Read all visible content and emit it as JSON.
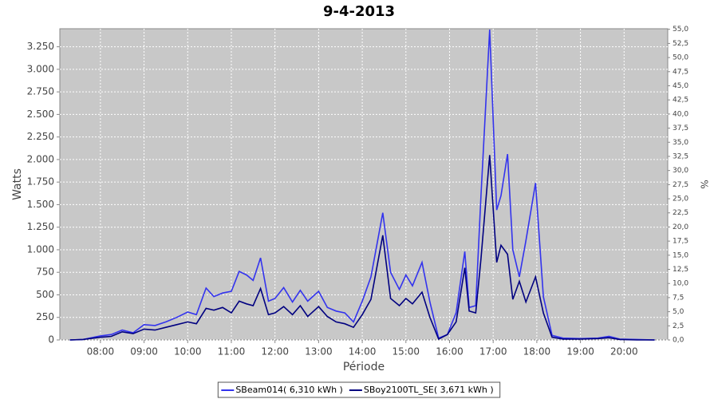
{
  "chart_data": {
    "type": "line",
    "title": "9-4-2013",
    "x_label": "Période",
    "y_label": "Watts",
    "y2_label": "%",
    "x": [
      7.3,
      7.6,
      8.0,
      8.25,
      8.5,
      8.75,
      9.0,
      9.25,
      9.5,
      9.75,
      10.0,
      10.2,
      10.42,
      10.6,
      10.8,
      11.0,
      11.18,
      11.35,
      11.5,
      11.67,
      11.85,
      12.0,
      12.2,
      12.4,
      12.58,
      12.75,
      13.0,
      13.2,
      13.4,
      13.6,
      13.8,
      14.0,
      14.2,
      14.47,
      14.65,
      14.85,
      15.0,
      15.15,
      15.37,
      15.55,
      15.75,
      15.95,
      16.15,
      16.35,
      16.45,
      16.6,
      16.72,
      16.92,
      17.08,
      17.18,
      17.33,
      17.45,
      17.6,
      17.75,
      17.97,
      18.15,
      18.35,
      18.6,
      19.0,
      19.4,
      19.65,
      19.9,
      20.3,
      20.7
    ],
    "series": [
      {
        "name": "SBeam014( 6,310 kWh )",
        "color": "#3333ee",
        "values": [
          0,
          5,
          45,
          60,
          110,
          80,
          170,
          160,
          200,
          250,
          310,
          280,
          575,
          480,
          520,
          540,
          760,
          720,
          660,
          910,
          430,
          460,
          580,
          420,
          550,
          430,
          540,
          360,
          320,
          300,
          200,
          430,
          700,
          1410,
          750,
          560,
          720,
          600,
          860,
          420,
          20,
          60,
          300,
          980,
          360,
          380,
          1600,
          3440,
          1440,
          1600,
          2060,
          1000,
          700,
          1100,
          1740,
          480,
          50,
          20,
          15,
          20,
          40,
          10,
          5,
          0
        ]
      },
      {
        "name": "SBoy2100TL_SE( 3,671 kWh )",
        "color": "#000080",
        "values": [
          0,
          5,
          30,
          40,
          90,
          70,
          120,
          110,
          140,
          170,
          200,
          180,
          350,
          330,
          360,
          300,
          430,
          400,
          380,
          570,
          280,
          300,
          370,
          280,
          380,
          260,
          370,
          260,
          200,
          180,
          140,
          280,
          450,
          1160,
          460,
          380,
          460,
          400,
          530,
          250,
          10,
          60,
          200,
          800,
          320,
          300,
          900,
          2050,
          860,
          1050,
          950,
          450,
          650,
          420,
          700,
          300,
          30,
          10,
          10,
          15,
          25,
          5,
          0,
          0
        ]
      }
    ],
    "xlim": [
      7.07,
      21.0
    ],
    "xticks": [
      {
        "value": 8,
        "label": "08:00"
      },
      {
        "value": 9,
        "label": "09:00"
      },
      {
        "value": 10,
        "label": "10:00"
      },
      {
        "value": 11,
        "label": "11:00"
      },
      {
        "value": 12,
        "label": "12:00"
      },
      {
        "value": 13,
        "label": "13:00"
      },
      {
        "value": 14,
        "label": "14:00"
      },
      {
        "value": 15,
        "label": "15:00"
      },
      {
        "value": 16,
        "label": "16:00"
      },
      {
        "value": 17,
        "label": "17:00"
      },
      {
        "value": 18,
        "label": "18:00"
      },
      {
        "value": 19,
        "label": "19:00"
      },
      {
        "value": 20,
        "label": "20:00"
      }
    ],
    "ylim": [
      0,
      3450
    ],
    "yticks": [
      0,
      250,
      500,
      750,
      {
        "value": 1000,
        "label": "1.000"
      },
      {
        "value": 1250,
        "label": "1.250"
      },
      {
        "value": 1500,
        "label": "1.500"
      },
      {
        "value": 1750,
        "label": "1.750"
      },
      {
        "value": 2000,
        "label": "2.000"
      },
      {
        "value": 2250,
        "label": "2.250"
      },
      {
        "value": 2500,
        "label": "2.500"
      },
      {
        "value": 2750,
        "label": "2.750"
      },
      {
        "value": 3000,
        "label": "3.000"
      },
      {
        "value": 3250,
        "label": "3.250"
      }
    ],
    "y2lim": [
      0,
      55.1
    ],
    "y2ticks": [
      {
        "value": 0,
        "label": "0,0"
      },
      {
        "value": 2.5,
        "label": "2,5"
      },
      {
        "value": 5,
        "label": "5,0"
      },
      {
        "value": 7.5,
        "label": "7,5"
      },
      {
        "value": 10,
        "label": "10,0"
      },
      {
        "value": 12.5,
        "label": "12,5"
      },
      {
        "value": 15,
        "label": "15,0"
      },
      {
        "value": 17.5,
        "label": "17,5"
      },
      {
        "value": 20,
        "label": "20,0"
      },
      {
        "value": 22.5,
        "label": "22,5"
      },
      {
        "value": 25,
        "label": "25,0"
      },
      {
        "value": 27.5,
        "label": "27,5"
      },
      {
        "value": 30,
        "label": "30,0"
      },
      {
        "value": 32.5,
        "label": "32,5"
      },
      {
        "value": 35,
        "label": "35,0"
      },
      {
        "value": 37.5,
        "label": "37,5"
      },
      {
        "value": 40,
        "label": "40,0"
      },
      {
        "value": 42.5,
        "label": "42,5"
      },
      {
        "value": 45,
        "label": "45,0"
      },
      {
        "value": 47.5,
        "label": "47,5"
      },
      {
        "value": 50,
        "label": "50,0"
      },
      {
        "value": 52.5,
        "label": "52,5"
      },
      {
        "value": 55,
        "label": "55,0"
      }
    ],
    "grid": true,
    "legend": "bottom"
  }
}
